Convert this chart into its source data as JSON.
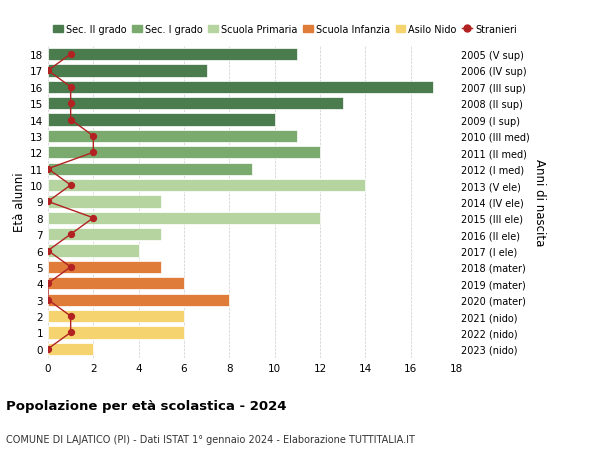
{
  "ages": [
    18,
    17,
    16,
    15,
    14,
    13,
    12,
    11,
    10,
    9,
    8,
    7,
    6,
    5,
    4,
    3,
    2,
    1,
    0
  ],
  "years": [
    "2005 (V sup)",
    "2006 (IV sup)",
    "2007 (III sup)",
    "2008 (II sup)",
    "2009 (I sup)",
    "2010 (III med)",
    "2011 (II med)",
    "2012 (I med)",
    "2013 (V ele)",
    "2014 (IV ele)",
    "2015 (III ele)",
    "2016 (II ele)",
    "2017 (I ele)",
    "2018 (mater)",
    "2019 (mater)",
    "2020 (mater)",
    "2021 (nido)",
    "2022 (nido)",
    "2023 (nido)"
  ],
  "bar_values": [
    11,
    7,
    17,
    13,
    10,
    11,
    12,
    9,
    14,
    5,
    12,
    5,
    4,
    5,
    6,
    8,
    6,
    6,
    2
  ],
  "bar_colors": [
    "#4a7c4e",
    "#4a7c4e",
    "#4a7c4e",
    "#4a7c4e",
    "#4a7c4e",
    "#7aaa6e",
    "#7aaa6e",
    "#7aaa6e",
    "#b5d4a0",
    "#b5d4a0",
    "#b5d4a0",
    "#b5d4a0",
    "#b5d4a0",
    "#e07c3a",
    "#e07c3a",
    "#e07c3a",
    "#f5d470",
    "#f5d470",
    "#f5d470"
  ],
  "stranieri_values": [
    1,
    0,
    1,
    1,
    1,
    2,
    2,
    0,
    1,
    0,
    2,
    1,
    0,
    1,
    0,
    0,
    1,
    1,
    0
  ],
  "stranieri_color": "#b22222",
  "legend_labels": [
    "Sec. II grado",
    "Sec. I grado",
    "Scuola Primaria",
    "Scuola Infanzia",
    "Asilo Nido",
    "Stranieri"
  ],
  "legend_colors": [
    "#4a7c4e",
    "#7aaa6e",
    "#b5d4a0",
    "#e07c3a",
    "#f5d470",
    "#b22222"
  ],
  "ylabel_left": "Età alunni",
  "ylabel_right": "Anni di nascita",
  "title": "Popolazione per età scolastica - 2024",
  "subtitle": "COMUNE DI LAJATICO (PI) - Dati ISTAT 1° gennaio 2024 - Elaborazione TUTTITALIA.IT",
  "xlim": [
    0,
    18
  ],
  "bg_color": "#ffffff",
  "grid_color": "#cccccc"
}
